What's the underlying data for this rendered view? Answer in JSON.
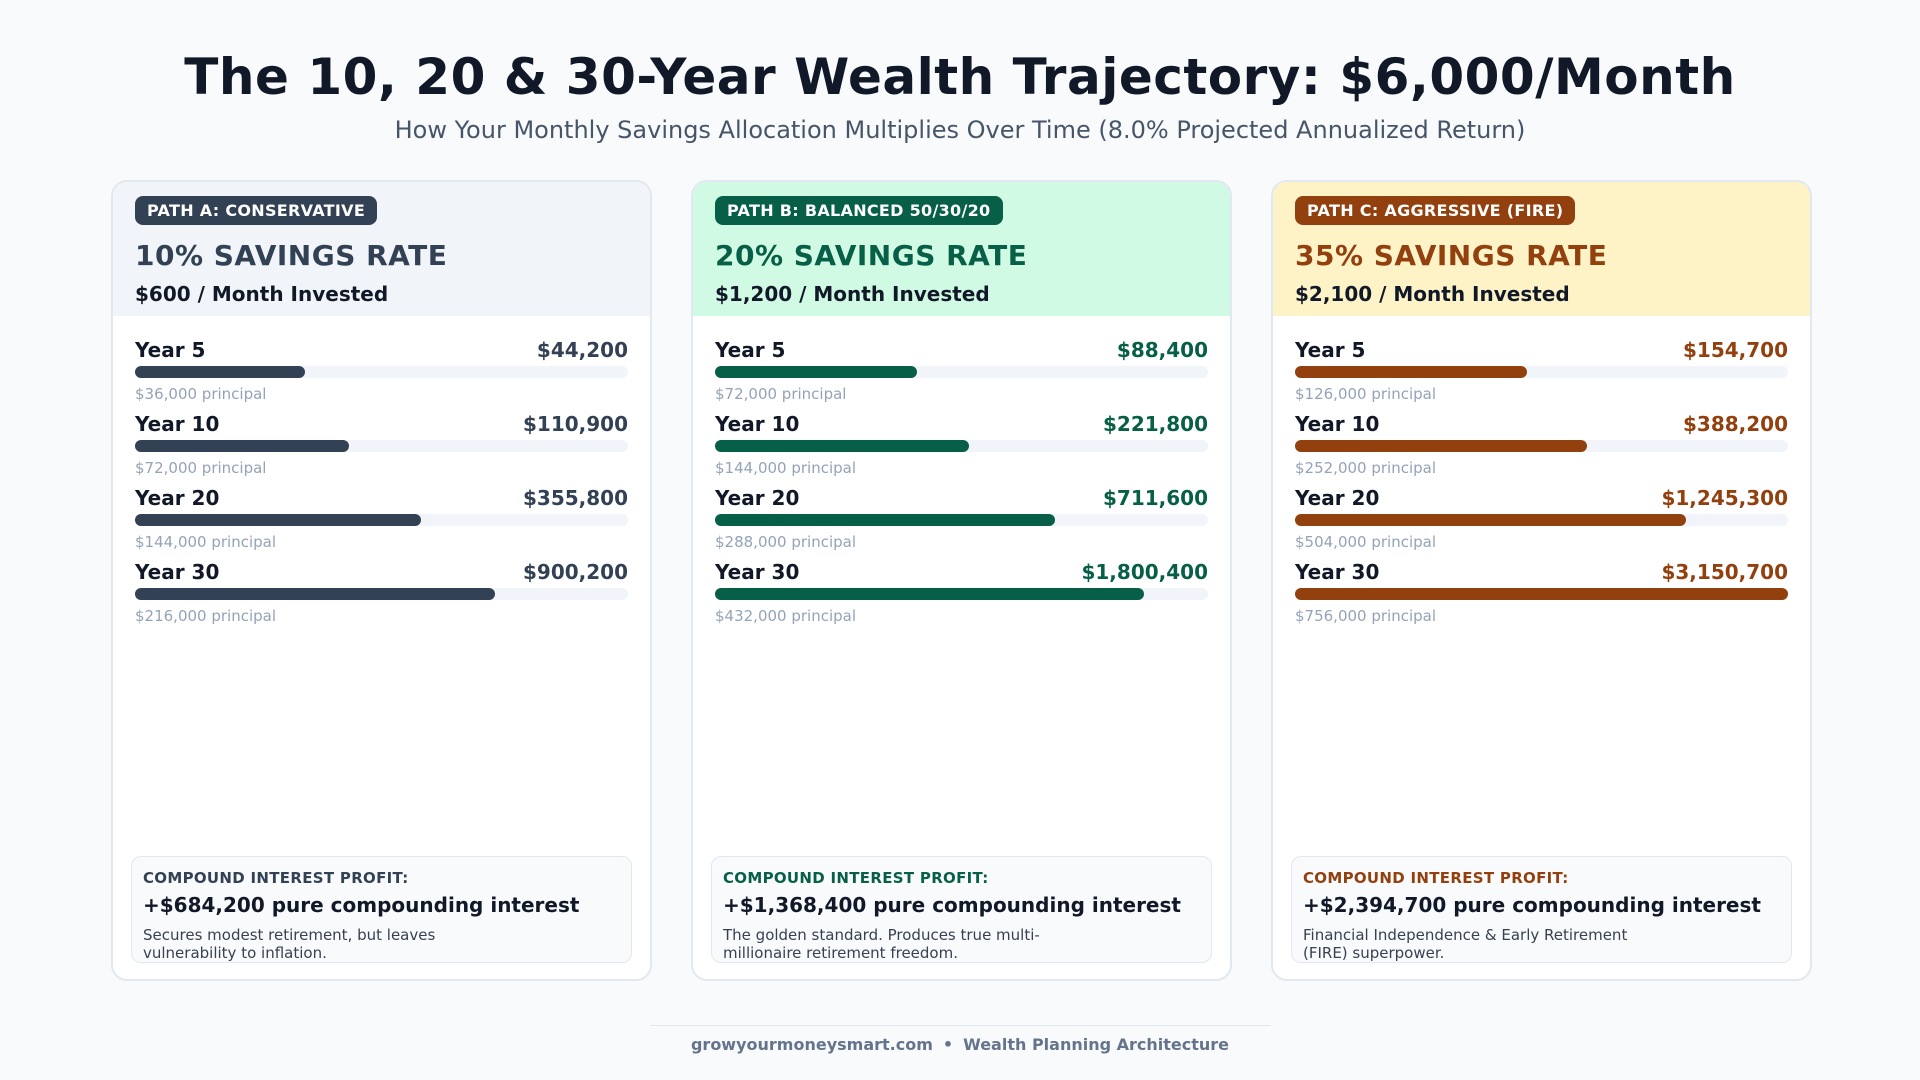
{
  "title": "The 10, 20 & 30-Year Wealth Trajectory: $6,000/Month",
  "subtitle": "How Your Monthly Savings Allocation Multiplies Over Time (8.0% Projected Annualized Return)",
  "footer": {
    "site": "growyourmoneysmart.com",
    "separator": "•",
    "tagline": "Wealth Planning Architecture"
  },
  "chart_data": {
    "type": "bar",
    "title": "The 10, 20 & 30-Year Wealth Trajectory: $6,000/Month",
    "subtitle": "How Your Monthly Savings Allocation Multiplies Over Time (8.0% Projected Annualized Return)",
    "categories": [
      "Year 5",
      "Year 10",
      "Year 20",
      "Year 30"
    ],
    "xmax": 3350000,
    "series": [
      {
        "name": "PATH A: CONSERVATIVE",
        "rate": "10% SAVINGS RATE",
        "monthly": "$600 / Month Invested",
        "color": "#334155",
        "head_bg": "#f1f5f9",
        "values": [
          44200,
          110900,
          355800,
          900200
        ],
        "value_labels": [
          "$44,200",
          "$110,900",
          "$355,800",
          "$900,200"
        ],
        "principal": [
          "$36,000 principal",
          "$72,000 principal",
          "$144,000 principal",
          "$216,000 principal"
        ],
        "profit_label": "COMPOUND INTEREST PROFIT:",
        "profit_value": "+$684,200 pure compounding interest",
        "profit_note": "Secures modest retirement, but leaves vulnerability to inflation."
      },
      {
        "name": "PATH B: BALANCED 50/30/20",
        "rate": "20% SAVINGS RATE",
        "monthly": "$1,200 / Month Invested",
        "color": "#065f46",
        "head_bg": "#d1fae5",
        "values": [
          88400,
          221800,
          711600,
          1800400
        ],
        "value_labels": [
          "$88,400",
          "$221,800",
          "$711,600",
          "$1,800,400"
        ],
        "principal": [
          "$72,000 principal",
          "$144,000 principal",
          "$288,000 principal",
          "$432,000 principal"
        ],
        "profit_label": "COMPOUND INTEREST PROFIT:",
        "profit_value": "+$1,368,400 pure compounding interest",
        "profit_note": "The golden standard. Produces true multi-millionaire retirement freedom."
      },
      {
        "name": "PATH C: AGGRESSIVE (FIRE)",
        "rate": "35% SAVINGS RATE",
        "monthly": "$2,100 / Month Invested",
        "color": "#92400e",
        "head_bg": "#fef3c7",
        "values": [
          154700,
          388200,
          1245300,
          3150700
        ],
        "value_labels": [
          "$154,700",
          "$388,200",
          "$1,245,300",
          "$3,150,700"
        ],
        "principal": [
          "$126,000 principal",
          "$252,000 principal",
          "$504,000 principal",
          "$756,000 principal"
        ],
        "profit_label": "COMPOUND INTEREST PROFIT:",
        "profit_value": "+$2,394,700 pure compounding interest",
        "profit_note": "Financial Independence & Early Retirement (FIRE) superpower."
      }
    ]
  }
}
